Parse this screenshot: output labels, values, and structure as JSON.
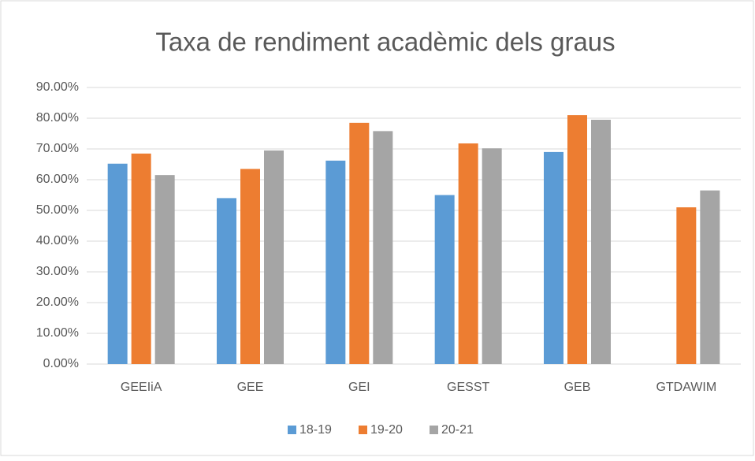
{
  "chart_data": {
    "type": "bar",
    "title": "Taxa de rendiment acadèmic dels graus",
    "categories": [
      "GEEIiA",
      "GEE",
      "GEI",
      "GESST",
      "GEB",
      "GTDAWIM"
    ],
    "series": [
      {
        "name": "18-19",
        "color": "#5b9bd5",
        "values": [
          65.2,
          54,
          66.2,
          55,
          69,
          null
        ]
      },
      {
        "name": "19-20",
        "color": "#ed7d31",
        "values": [
          68.5,
          63.5,
          78.5,
          71.8,
          81,
          51
        ]
      },
      {
        "name": "20-21",
        "color": "#a5a5a5",
        "values": [
          61.5,
          69.5,
          75.8,
          70.2,
          79.5,
          56.5
        ]
      }
    ],
    "ylim": [
      0,
      90
    ],
    "yticks": [
      {
        "value": 0,
        "label": "0.00%"
      },
      {
        "value": 10,
        "label": "10.00%"
      },
      {
        "value": 20,
        "label": "20.00%"
      },
      {
        "value": 30,
        "label": "30.00%"
      },
      {
        "value": 40,
        "label": "40.00%"
      },
      {
        "value": 50,
        "label": "50.00%"
      },
      {
        "value": 60,
        "label": "60.00%"
      },
      {
        "value": 70,
        "label": "70.00%"
      },
      {
        "value": 80,
        "label": "80.00%"
      },
      {
        "value": 90,
        "label": "90.00%"
      }
    ],
    "grid": true,
    "legend": "bottom"
  }
}
